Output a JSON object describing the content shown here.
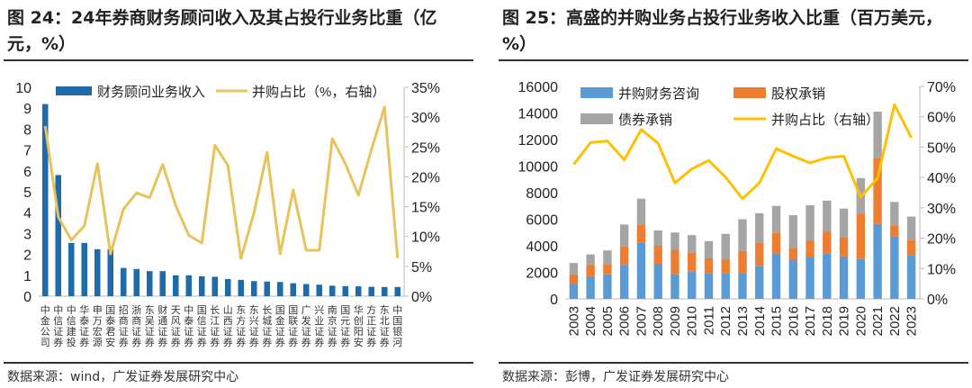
{
  "figures": [
    {
      "title": "图 24：24年券商财务顾问收入及其占投行业务比重（亿元，%）",
      "source": "数据来源：wind，广发证券发展研究中心"
    },
    {
      "title": "图 25：高盛的并购业务占投行业务收入比重（百万美元，%）",
      "source": "数据来源：彭博，广发证券发展研究中心"
    }
  ],
  "chart_data": [
    {
      "type": "bar+line",
      "categories": [
        "中金公司",
        "中信证券",
        "中信建投",
        "华泰证券",
        "申万宏源",
        "国泰君安",
        "招商证券",
        "浙商证券",
        "东吴证券",
        "财通证券",
        "天风证券",
        "中泰证券",
        "国信证券",
        "长江证券",
        "山西证券",
        "东方证券",
        "东兴证券",
        "长城证券",
        "国金证券",
        "国联证券",
        "广发证券",
        "兴业证券",
        "南京证券",
        "国元证券",
        "华创阳安",
        "方正证券",
        "东北证券",
        "中国银河"
      ],
      "series": [
        {
          "name": "财务顾问业务收入",
          "type": "bar",
          "axis": "left",
          "color": "#1f6aa8",
          "values": [
            9.2,
            5.8,
            2.55,
            2.55,
            2.25,
            2.25,
            1.35,
            1.3,
            1.2,
            1.2,
            1.0,
            1.0,
            0.95,
            0.93,
            0.82,
            0.78,
            0.72,
            0.7,
            0.68,
            0.62,
            0.58,
            0.55,
            0.5,
            0.48,
            0.47,
            0.45,
            0.44,
            0.44
          ]
        },
        {
          "name": "并购占比（%，右轴）",
          "type": "line",
          "axis": "right",
          "color": "#e6c35c",
          "values": [
            28.5,
            13.3,
            9.4,
            11.8,
            22.2,
            7.1,
            14.6,
            17.3,
            16.5,
            22.1,
            15.2,
            10.2,
            8.9,
            25.3,
            21.9,
            6.3,
            14.0,
            24.1,
            7.1,
            17.8,
            7.7,
            7.7,
            26.4,
            22.2,
            16.9,
            24.6,
            31.7,
            6.4
          ]
        }
      ],
      "ylim": [
        0,
        10
      ],
      "yticks": [
        "0",
        "1",
        "2",
        "3",
        "4",
        "5",
        "6",
        "7",
        "8",
        "9",
        "10"
      ],
      "y2lim": [
        0,
        35
      ],
      "y2ticks": [
        "0%",
        "5%",
        "10%",
        "15%",
        "20%",
        "25%",
        "30%",
        "35%"
      ],
      "legend": "top"
    },
    {
      "type": "stacked-bar+line",
      "categories": [
        "2003",
        "2004",
        "2005",
        "2006",
        "2007",
        "2008",
        "2009",
        "2010",
        "2011",
        "2012",
        "2013",
        "2014",
        "2015",
        "2016",
        "2017",
        "2018",
        "2019",
        "2020",
        "2021",
        "2022",
        "2023"
      ],
      "series": [
        {
          "name": "并购财务咨询",
          "type": "bar",
          "color": "#5b9bd5",
          "values": [
            1150,
            1700,
            1850,
            2550,
            4250,
            2650,
            1850,
            2050,
            1950,
            1950,
            1950,
            2450,
            3450,
            2950,
            3150,
            3400,
            3200,
            3000,
            5650,
            4700,
            3300
          ]
        },
        {
          "name": "股权承销",
          "type": "bar",
          "color": "#ed7d31",
          "values": [
            700,
            850,
            750,
            1400,
            1350,
            1350,
            1850,
            1450,
            1100,
            1000,
            1650,
            1750,
            1550,
            850,
            1250,
            1650,
            1450,
            3400,
            4950,
            850,
            1150
          ]
        },
        {
          "name": "债券承销",
          "type": "bar",
          "color": "#a5a5a5",
          "values": [
            850,
            800,
            1050,
            1650,
            1950,
            1150,
            1300,
            1300,
            1300,
            1950,
            2400,
            2250,
            2000,
            2500,
            2650,
            2350,
            2150,
            2700,
            3500,
            1750,
            1750
          ]
        },
        {
          "name": "并购占比（右轴）",
          "type": "line",
          "axis": "right",
          "color": "#ffc000",
          "values": [
            44.3,
            51.5,
            52.0,
            45.8,
            55.8,
            51.3,
            38.2,
            42.8,
            45.6,
            40.1,
            33.0,
            38.2,
            49.5,
            47.0,
            44.8,
            46.5,
            47.0,
            33.5,
            39.8,
            64.0,
            53.1
          ]
        }
      ],
      "ylim": [
        0,
        16000
      ],
      "yticks": [
        "0",
        "2000",
        "4000",
        "6000",
        "8000",
        "10000",
        "12000",
        "14000",
        "16000"
      ],
      "y2lim": [
        0,
        70
      ],
      "y2ticks": [
        "0%",
        "10%",
        "20%",
        "30%",
        "40%",
        "50%",
        "60%",
        "70%"
      ],
      "legend": "top"
    }
  ]
}
